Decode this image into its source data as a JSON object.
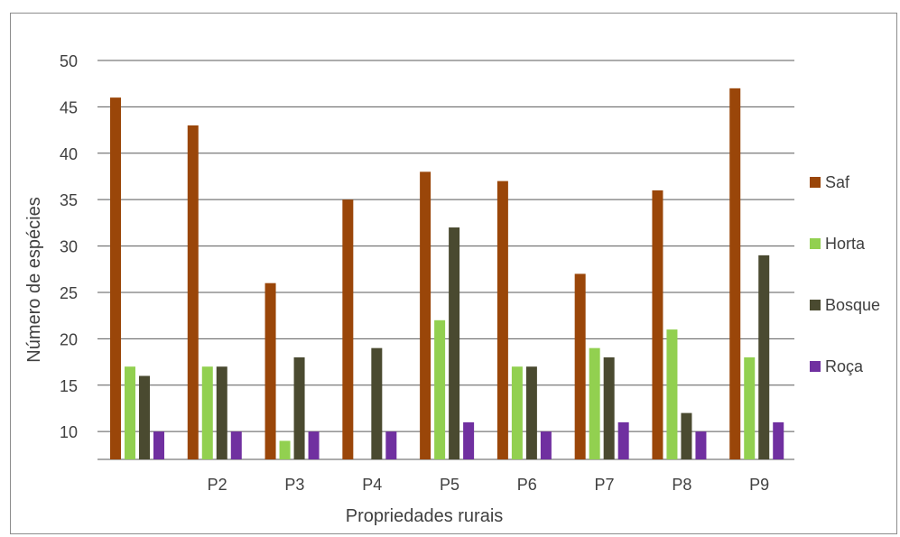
{
  "chart_data": {
    "type": "bar",
    "title": "",
    "xlabel": "Propriedades rurais",
    "ylabel": "Número de espécies",
    "categories": [
      "",
      "P2",
      "P3",
      "P4",
      "P5",
      "P6",
      "P7",
      "P8",
      "P9"
    ],
    "y_ticks": [
      "10",
      "15",
      "20",
      "25",
      "30",
      "35",
      "40",
      "45",
      "50"
    ],
    "ylim": [
      7,
      50
    ],
    "grid": true,
    "legend_position": "right",
    "series": [
      {
        "name": "Saf",
        "color": "#9a4609",
        "values": [
          46,
          43,
          26,
          35,
          38,
          37,
          27,
          36,
          47
        ]
      },
      {
        "name": "Horta",
        "color": "#92d050",
        "values": [
          17,
          17,
          9,
          6,
          22,
          17,
          19,
          21,
          18
        ]
      },
      {
        "name": "Bosque",
        "color": "#4a4a30",
        "values": [
          16,
          17,
          18,
          19,
          32,
          17,
          18,
          12,
          29
        ]
      },
      {
        "name": "Roça",
        "color": "#7030a0",
        "values": [
          10,
          10,
          10,
          10,
          11,
          10,
          11,
          10,
          11
        ]
      }
    ]
  }
}
